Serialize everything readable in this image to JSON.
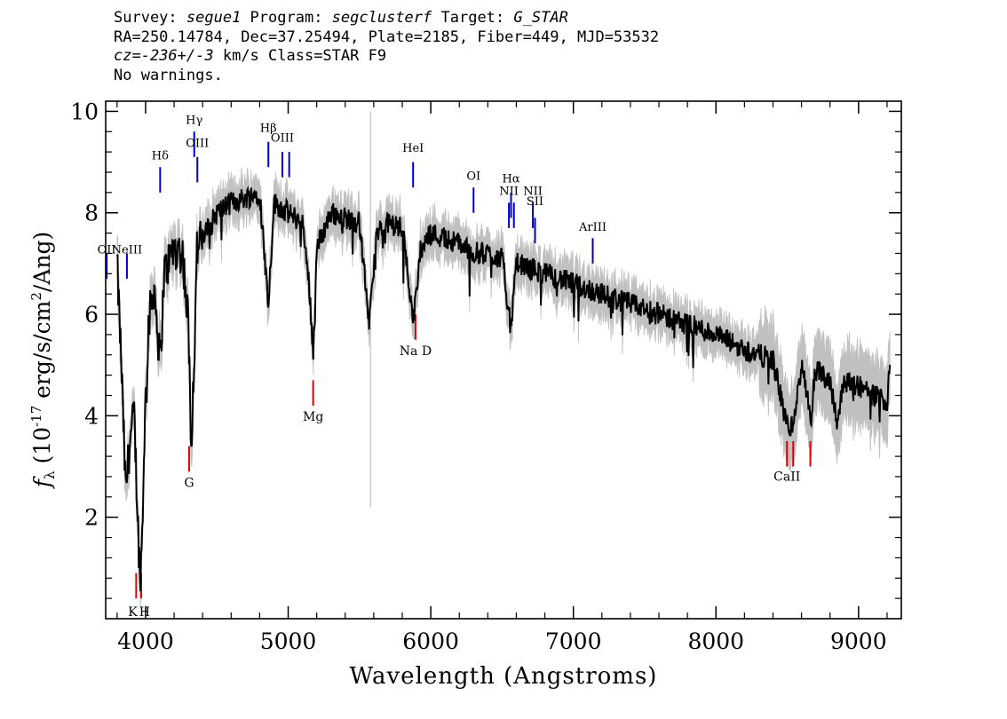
{
  "header": {
    "line1": {
      "survey_label": "Survey: ",
      "survey": "segue1",
      "program_label": " Program: ",
      "program": "segclusterf",
      "target_label": " Target: ",
      "target": "G_STAR"
    },
    "line2": "RA=250.14784, Dec=37.25494, Plate=2185, Fiber=449, MJD=53532",
    "line3": {
      "cz_label": "cz=",
      "cz": "-236+/-3",
      "rest": " km/s Class=STAR F9"
    },
    "line4": "No warnings."
  },
  "chart_data": {
    "type": "line",
    "xlabel": "Wavelength (Angstroms)",
    "ylabel_text": "f",
    "ylabel_sub": "λ",
    "ylabel_pre": " (10",
    "ylabel_sup": "-17",
    "ylabel_post": " erg/s/cm",
    "ylabel_sup2": "2",
    "ylabel_end": "/Ang)",
    "xlim": [
      3720,
      9300
    ],
    "ylim": [
      0,
      10.2
    ],
    "xticks": [
      4000,
      5000,
      6000,
      7000,
      8000,
      9000
    ],
    "xtick_labels": [
      "4000",
      "5000",
      "6000",
      "7000",
      "8000",
      "9000"
    ],
    "yticks": [
      2,
      4,
      6,
      8,
      10
    ],
    "ytick_labels": [
      "2",
      "4",
      "6",
      "8",
      "10"
    ],
    "colors": {
      "flux": "#000000",
      "error": "#c0c0c0",
      "emission": "#0000cc",
      "absorption": "#dd0000"
    },
    "continuum": [
      [
        3800,
        7.0
      ],
      [
        3830,
        5.0
      ],
      [
        3860,
        2.5
      ],
      [
        3890,
        3.5
      ],
      [
        3920,
        4.0
      ],
      [
        3945,
        2.0
      ],
      [
        3960,
        0.8
      ],
      [
        3975,
        1.5
      ],
      [
        3990,
        3.5
      ],
      [
        4020,
        5.8
      ],
      [
        4060,
        6.6
      ],
      [
        4102,
        5.0
      ],
      [
        4130,
        6.8
      ],
      [
        4200,
        7.3
      ],
      [
        4260,
        7.2
      ],
      [
        4300,
        5.8
      ],
      [
        4320,
        3.5
      ],
      [
        4340,
        5.0
      ],
      [
        4360,
        7.3
      ],
      [
        4400,
        7.5
      ],
      [
        4500,
        8.0
      ],
      [
        4600,
        8.2
      ],
      [
        4700,
        8.3
      ],
      [
        4800,
        8.4
      ],
      [
        4861,
        6.2
      ],
      [
        4900,
        8.2
      ],
      [
        5000,
        8.0
      ],
      [
        5100,
        7.8
      ],
      [
        5150,
        6.5
      ],
      [
        5175,
        5.2
      ],
      [
        5200,
        7.3
      ],
      [
        5300,
        8.0
      ],
      [
        5400,
        7.9
      ],
      [
        5500,
        7.8
      ],
      [
        5570,
        5.8
      ],
      [
        5620,
        7.6
      ],
      [
        5700,
        7.8
      ],
      [
        5800,
        7.7
      ],
      [
        5880,
        5.9
      ],
      [
        5930,
        7.3
      ],
      [
        6000,
        7.6
      ],
      [
        6100,
        7.5
      ],
      [
        6200,
        7.4
      ],
      [
        6300,
        7.2
      ],
      [
        6400,
        7.2
      ],
      [
        6500,
        7.1
      ],
      [
        6563,
        5.7
      ],
      [
        6600,
        7.0
      ],
      [
        6700,
        6.9
      ],
      [
        6800,
        6.8
      ],
      [
        6900,
        6.7
      ],
      [
        7000,
        6.6
      ],
      [
        7200,
        6.4
      ],
      [
        7400,
        6.2
      ],
      [
        7600,
        6.0
      ],
      [
        7800,
        5.8
      ],
      [
        8000,
        5.6
      ],
      [
        8200,
        5.3
      ],
      [
        8400,
        5.1
      ],
      [
        8498,
        3.8
      ],
      [
        8542,
        3.8
      ],
      [
        8600,
        5.0
      ],
      [
        8662,
        4.0
      ],
      [
        8700,
        4.9
      ],
      [
        8800,
        4.7
      ],
      [
        8850,
        3.9
      ],
      [
        8900,
        4.7
      ],
      [
        9000,
        4.6
      ],
      [
        9100,
        4.4
      ],
      [
        9200,
        4.3
      ],
      [
        9220,
        5.1
      ]
    ],
    "emission_lines": [
      {
        "label": "OII",
        "wave": 3727,
        "y_top": 7.2,
        "y_bot": 6.7,
        "label_y": 7.2
      },
      {
        "label": "NeIII",
        "wave": 3869,
        "y_top": 7.2,
        "y_bot": 6.7,
        "label_y": 7.2
      },
      {
        "label": "Hδ",
        "wave": 4102,
        "y_top": 8.9,
        "y_bot": 8.4,
        "label_y": 9.05
      },
      {
        "label": "Hγ",
        "wave": 4341,
        "y_top": 9.6,
        "y_bot": 9.1,
        "label_y": 9.75
      },
      {
        "label": "OIII",
        "wave": 4363,
        "y_top": 9.1,
        "y_bot": 8.6,
        "label_y": 9.3
      },
      {
        "label": "Hβ",
        "wave": 4861,
        "y_top": 9.4,
        "y_bot": 8.9,
        "label_y": 9.6
      },
      {
        "label": "OIII",
        "wave": 4959,
        "y_top": 9.2,
        "y_bot": 8.7,
        "label_y": 9.4
      },
      {
        "label": "",
        "wave": 5007,
        "y_top": 9.2,
        "y_bot": 8.7,
        "label_y": 9.4
      },
      {
        "label": "HeI",
        "wave": 5876,
        "y_top": 9.0,
        "y_bot": 8.5,
        "label_y": 9.2
      },
      {
        "label": "OI",
        "wave": 6300,
        "y_top": 8.5,
        "y_bot": 8.0,
        "label_y": 8.65
      },
      {
        "label": "NII",
        "wave": 6548,
        "y_top": 8.2,
        "y_bot": 7.7,
        "label_y": 8.35
      },
      {
        "label": "Hα",
        "wave": 6563,
        "y_top": 8.4,
        "y_bot": 7.9,
        "label_y": 8.6
      },
      {
        "label": "",
        "wave": 6583,
        "y_top": 8.2,
        "y_bot": 7.7,
        "label_y": 8.35
      },
      {
        "label": "NII",
        "wave": 6716,
        "y_top": 8.2,
        "y_bot": 7.7,
        "label_y": 8.35
      },
      {
        "label": "SII",
        "wave": 6731,
        "y_top": 7.9,
        "y_bot": 7.4,
        "label_y": 8.15
      },
      {
        "label": "ArIII",
        "wave": 7136,
        "y_top": 7.5,
        "y_bot": 7.0,
        "label_y": 7.65
      }
    ],
    "absorption_lines": [
      {
        "label": "K",
        "wave": 3934,
        "y_top": 0.9,
        "y_bot": 0.4,
        "label_x": 3910,
        "label_y": 0.05
      },
      {
        "label": "H",
        "wave": 3969,
        "y_top": 0.9,
        "y_bot": 0.4,
        "label_x": 3993,
        "label_y": 0.05
      },
      {
        "label": "G",
        "wave": 4305,
        "y_top": 3.4,
        "y_bot": 2.9,
        "label_x": 4305,
        "label_y": 2.6
      },
      {
        "label": "Mg",
        "wave": 5175,
        "y_top": 4.7,
        "y_bot": 4.2,
        "label_x": 5175,
        "label_y": 3.9
      },
      {
        "label": "Na D",
        "wave": 5893,
        "y_top": 6.0,
        "y_bot": 5.5,
        "label_x": 5893,
        "label_y": 5.2
      },
      {
        "label": "CaII",
        "wave": 8498,
        "y_top": 3.5,
        "y_bot": 3.0,
        "label_x": 8498,
        "label_y": 2.72
      },
      {
        "label": "",
        "wave": 8542,
        "y_top": 3.5,
        "y_bot": 3.0,
        "label_x": 8542,
        "label_y": 2.72
      },
      {
        "label": "",
        "wave": 8662,
        "y_top": 3.5,
        "y_bot": 3.0,
        "label_x": 8662,
        "label_y": 2.72
      }
    ]
  }
}
